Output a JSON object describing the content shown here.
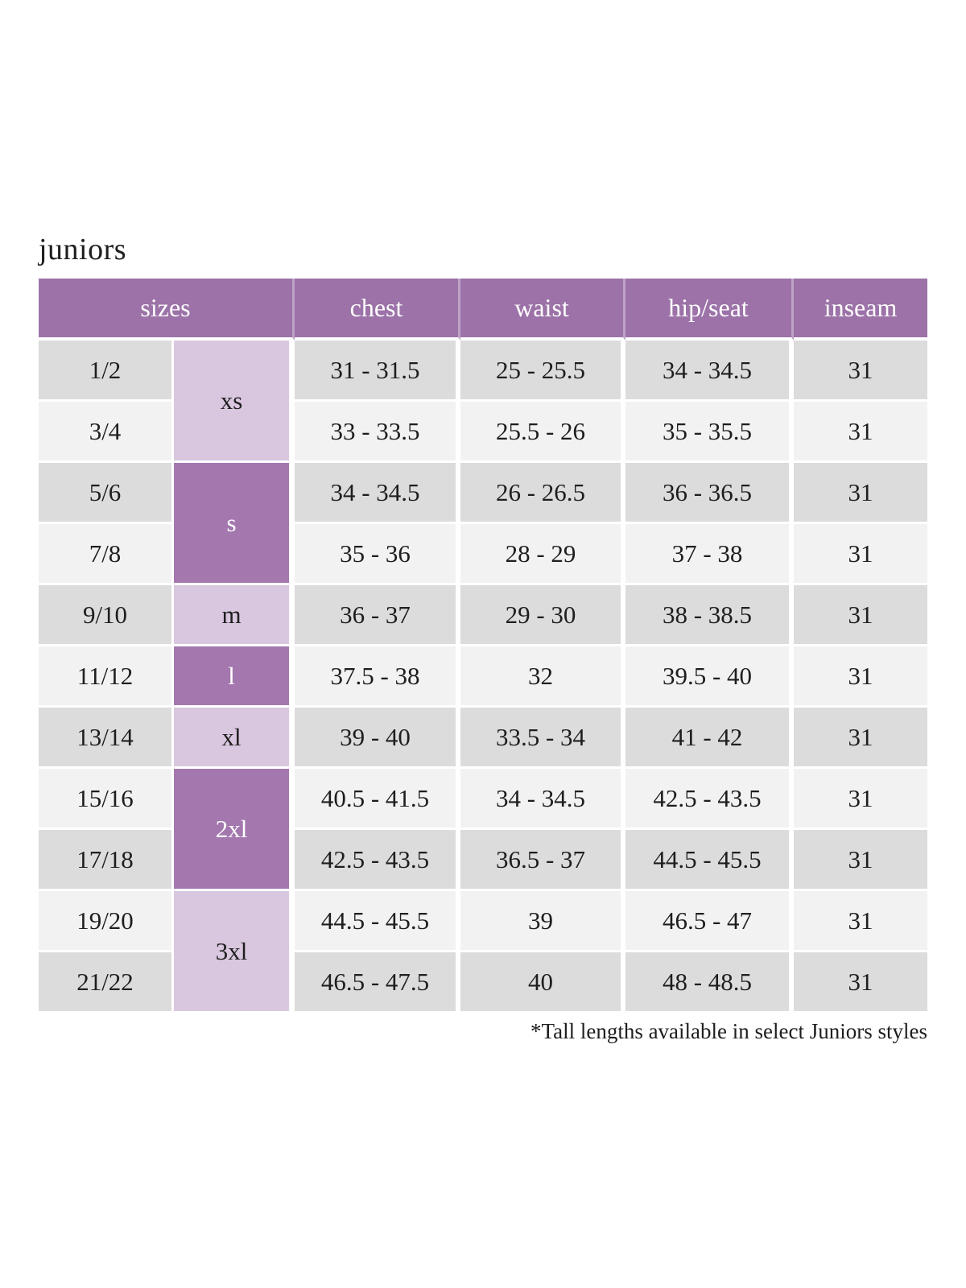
{
  "page": {
    "title": "juniors",
    "footnote": "*Tall lengths available in select Juniors styles"
  },
  "colors": {
    "header_bg": "#9c72a8",
    "letter_dark_bg": "#a478af",
    "letter_light_bg": "#d9c7df",
    "row_dark_bg": "#dcdcdc",
    "row_light_bg": "#f3f2f2",
    "header_text": "#ffffff",
    "body_text": "#1e1e1e"
  },
  "table": {
    "headers": [
      {
        "label": "sizes",
        "colspan": 2
      },
      {
        "label": "chest",
        "colspan": 1
      },
      {
        "label": "waist",
        "colspan": 1
      },
      {
        "label": "hip/seat",
        "colspan": 1
      },
      {
        "label": "inseam",
        "colspan": 1
      }
    ],
    "rows": [
      {
        "size": "1/2",
        "letter": "xs",
        "letter_rowspan": 2,
        "letter_variant": "light",
        "chest": "31 - 31.5",
        "waist": "25 - 25.5",
        "hip_seat": "34 - 34.5",
        "inseam": "31",
        "shade": "dark"
      },
      {
        "size": "3/4",
        "chest": "33 - 33.5",
        "waist": "25.5 - 26",
        "hip_seat": "35 - 35.5",
        "inseam": "31",
        "shade": "light"
      },
      {
        "size": "5/6",
        "letter": "s",
        "letter_rowspan": 2,
        "letter_variant": "dark",
        "chest": "34 - 34.5",
        "waist": "26 - 26.5",
        "hip_seat": "36 - 36.5",
        "inseam": "31",
        "shade": "dark"
      },
      {
        "size": "7/8",
        "chest": "35 - 36",
        "waist": "28 - 29",
        "hip_seat": "37 - 38",
        "inseam": "31",
        "shade": "light"
      },
      {
        "size": "9/10",
        "letter": "m",
        "letter_rowspan": 1,
        "letter_variant": "light",
        "chest": "36 - 37",
        "waist": "29 - 30",
        "hip_seat": "38 - 38.5",
        "inseam": "31",
        "shade": "dark"
      },
      {
        "size": "11/12",
        "letter": "l",
        "letter_rowspan": 1,
        "letter_variant": "dark",
        "chest": "37.5 - 38",
        "waist": "32",
        "hip_seat": "39.5 - 40",
        "inseam": "31",
        "shade": "light"
      },
      {
        "size": "13/14",
        "letter": "xl",
        "letter_rowspan": 1,
        "letter_variant": "light",
        "chest": "39 - 40",
        "waist": "33.5 - 34",
        "hip_seat": "41 - 42",
        "inseam": "31",
        "shade": "dark"
      },
      {
        "size": "15/16",
        "letter": "2xl",
        "letter_rowspan": 2,
        "letter_variant": "dark",
        "chest": "40.5 - 41.5",
        "waist": "34 - 34.5",
        "hip_seat": "42.5 - 43.5",
        "inseam": "31",
        "shade": "light"
      },
      {
        "size": "17/18",
        "chest": "42.5 - 43.5",
        "waist": "36.5 - 37",
        "hip_seat": "44.5 - 45.5",
        "inseam": "31",
        "shade": "dark"
      },
      {
        "size": "19/20",
        "letter": "3xl",
        "letter_rowspan": 2,
        "letter_variant": "light",
        "chest": "44.5 - 45.5",
        "waist": "39",
        "hip_seat": "46.5 - 47",
        "inseam": "31",
        "shade": "light"
      },
      {
        "size": "21/22",
        "chest": "46.5 - 47.5",
        "waist": "40",
        "hip_seat": "48 - 48.5",
        "inseam": "31",
        "shade": "dark"
      }
    ]
  }
}
